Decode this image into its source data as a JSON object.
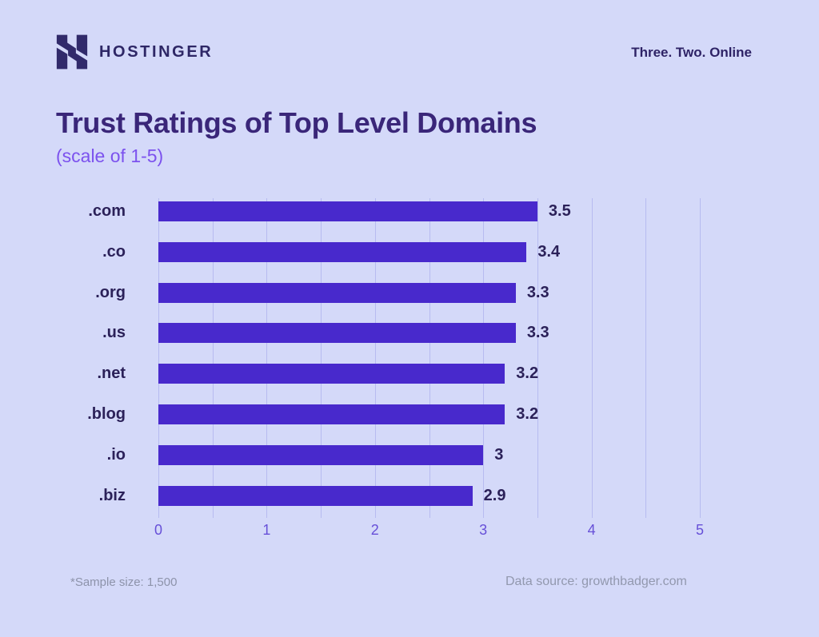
{
  "page": {
    "background_color": "#d4d9f9",
    "accent_color": "#7c52ee",
    "text_dark_color": "#2b2159"
  },
  "header": {
    "brand": "HOSTINGER",
    "logo_icon": "hostinger-h-logo",
    "logo_color": "#312a6b",
    "tagline": "Three. Two. Online"
  },
  "chart_data": {
    "type": "bar",
    "orientation": "horizontal",
    "title": "Trust Ratings of Top Level Domains",
    "subtitle": "(scale of 1-5)",
    "categories": [
      ".com",
      ".co",
      ".org",
      ".us",
      ".net",
      ".blog",
      ".io",
      ".biz"
    ],
    "values": [
      3.5,
      3.4,
      3.3,
      3.3,
      3.2,
      3.2,
      3,
      2.9
    ],
    "value_labels": [
      "3.5",
      "3.4",
      "3.3",
      "3.3",
      "3.2",
      "3.2",
      "3",
      "2.9"
    ],
    "xlabel": "",
    "ylabel": "",
    "xlim": [
      0,
      5
    ],
    "x_ticks": [
      0,
      1,
      2,
      3,
      4,
      5
    ],
    "gridline_step": 0.5,
    "grid": true,
    "legend": false,
    "bar_color": "#4829cc",
    "gridline_color": "#b7bbf0",
    "axis_label_color": "#6750d8"
  },
  "footer": {
    "sample_note": "*Sample size: 1,500",
    "data_source": "Data source: growthbadger.com"
  }
}
